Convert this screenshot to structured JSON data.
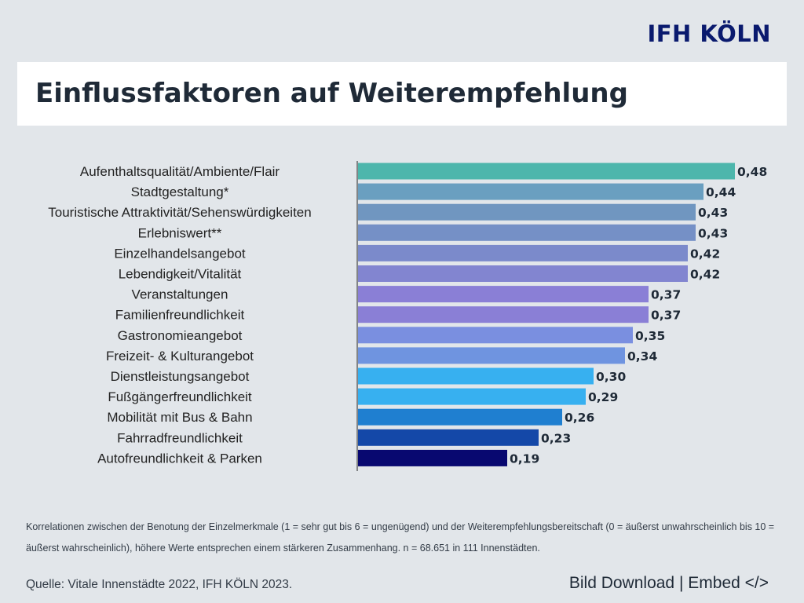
{
  "brand": "IFH KÖLN",
  "title": "Einflussfaktoren auf Weiterempfehlung",
  "chart_data": {
    "type": "bar",
    "orientation": "horizontal",
    "categories": [
      "Aufenthaltsqualität/Ambiente/Flair",
      "Stadtgestaltung*",
      "Touristische Attraktivität/Sehenswürdigkeiten",
      "Erlebniswert**",
      "Einzelhandelsangebot",
      "Lebendigkeit/Vitalität",
      "Veranstaltungen",
      "Familienfreundlichkeit",
      "Gastronomieangebot",
      "Freizeit- & Kulturangebot",
      "Dienstleistungsangebot",
      "Fußgängerfreundlichkeit",
      "Mobilität mit Bus & Bahn",
      "Fahrradfreundlichkeit",
      "Autofreundlichkeit & Parken"
    ],
    "values": [
      0.48,
      0.44,
      0.43,
      0.43,
      0.42,
      0.42,
      0.37,
      0.37,
      0.35,
      0.34,
      0.3,
      0.29,
      0.26,
      0.23,
      0.19
    ],
    "value_labels": [
      "0,48",
      "0,44",
      "0,43",
      "0,43",
      "0,42",
      "0,42",
      "0,37",
      "0,37",
      "0,35",
      "0,34",
      "0,30",
      "0,29",
      "0,26",
      "0,23",
      "0,19"
    ],
    "colors": [
      "#4db6ac",
      "#6a9fc0",
      "#7096c0",
      "#7590c6",
      "#7b8acb",
      "#8285d0",
      "#8a7fd6",
      "#8a7fd6",
      "#7a8fe0",
      "#6f94e0",
      "#37b0f0",
      "#37b0f0",
      "#1f7fd0",
      "#1448a8",
      "#080870"
    ],
    "xlim": [
      0,
      0.5
    ],
    "grid": false,
    "legend": "none"
  },
  "footnote": "Korrelationen zwischen der Benotung der Einzelmerkmale (1 = sehr gut bis 6 = ungenügend) und der Weiterempfehlungsbereitschaft (0 = äußerst unwahrscheinlich bis 10 = äußerst wahrscheinlich), höhere Werte entsprechen einem stärkeren Zusammenhang. n = 68.651 in 111 Innenstädten.",
  "source": "Quelle: Vitale Innenstädte 2022, IFH KÖLN 2023.",
  "actions": {
    "download": "Bild Download",
    "separator": "|",
    "embed": "Embed </>"
  }
}
